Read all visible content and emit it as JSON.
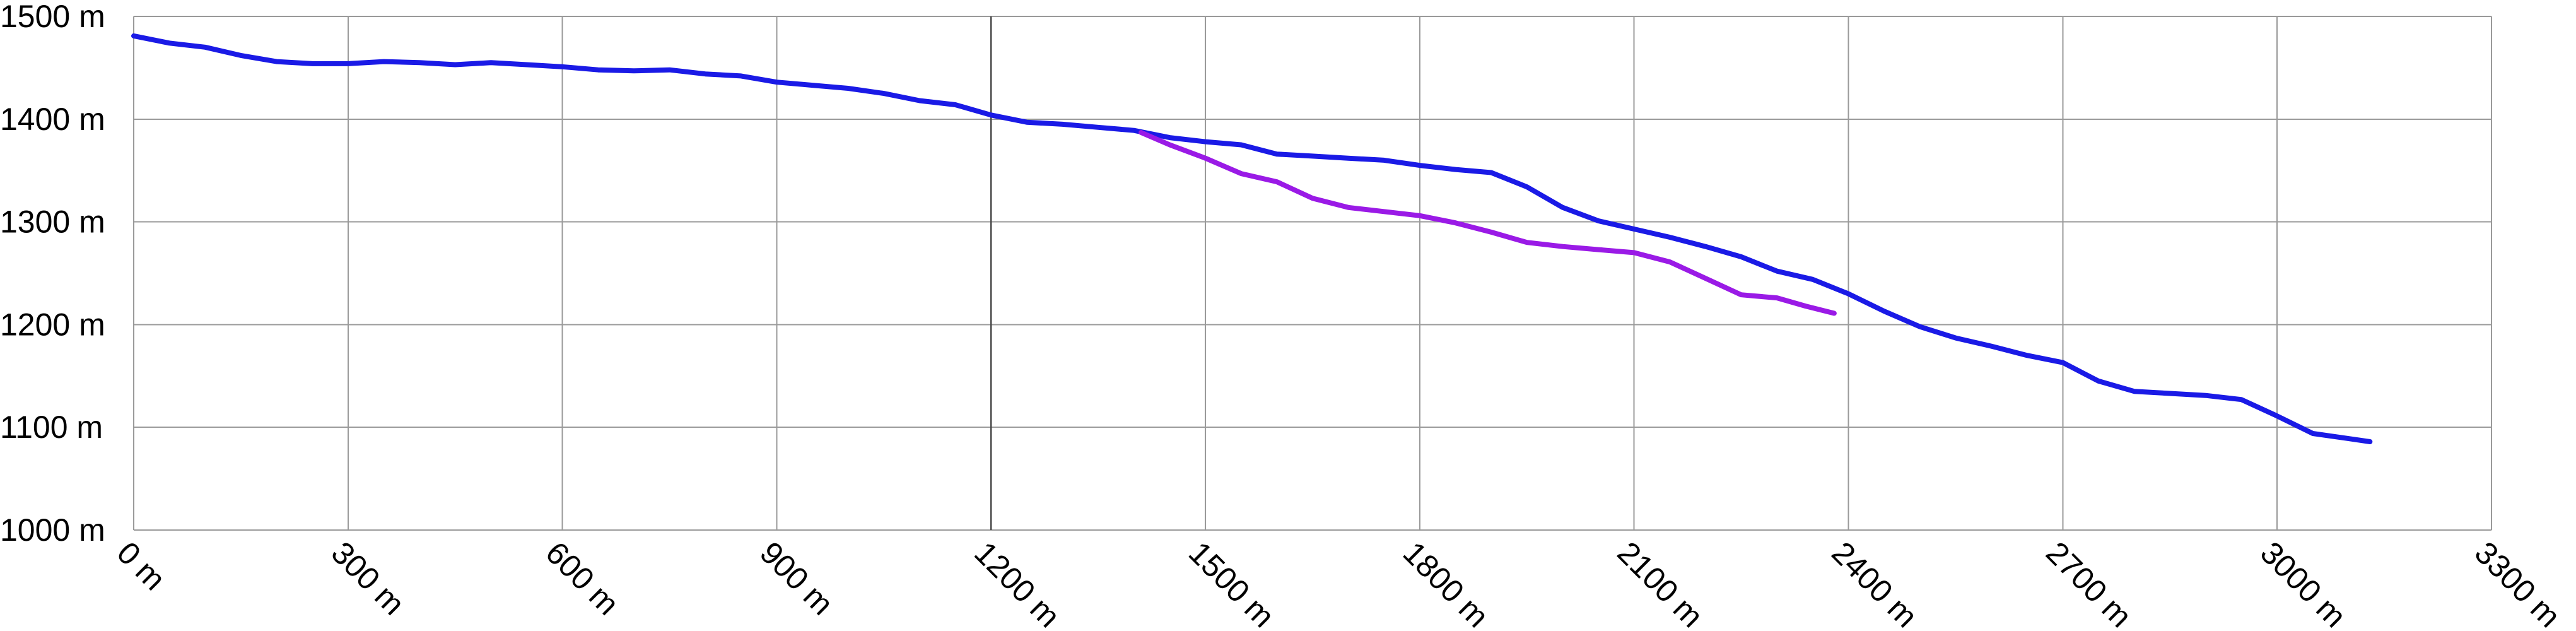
{
  "chart_data": {
    "type": "line",
    "title": "",
    "xlabel": "",
    "ylabel": "",
    "xlim": [
      0,
      3300
    ],
    "ylim": [
      1000,
      1500
    ],
    "x_ticks": [
      0,
      300,
      600,
      900,
      1200,
      1500,
      1800,
      2100,
      2400,
      2700,
      3000,
      3300
    ],
    "y_ticks": [
      1000,
      1100,
      1200,
      1300,
      1400,
      1500
    ],
    "x_tick_labels": [
      "0 m",
      "300 m",
      "600 m",
      "900 m",
      "1200 m",
      "1500 m",
      "1800 m",
      "2100 m",
      "2400 m",
      "2700 m",
      "3000 m",
      "3300 m"
    ],
    "y_tick_labels": [
      "1000 m",
      "1100 m",
      "1200 m",
      "1300 m",
      "1400 m",
      "1500 m"
    ],
    "major_x_line": 1200,
    "grid": true,
    "legend": "none",
    "series": [
      {
        "color": "#1a1ae6",
        "points": [
          [
            0,
            1481
          ],
          [
            50,
            1474
          ],
          [
            100,
            1470
          ],
          [
            150,
            1462
          ],
          [
            200,
            1456
          ],
          [
            250,
            1454
          ],
          [
            300,
            1454
          ],
          [
            350,
            1456
          ],
          [
            400,
            1455
          ],
          [
            450,
            1453
          ],
          [
            500,
            1455
          ],
          [
            550,
            1453
          ],
          [
            600,
            1451
          ],
          [
            650,
            1448
          ],
          [
            700,
            1447
          ],
          [
            750,
            1448
          ],
          [
            800,
            1444
          ],
          [
            850,
            1442
          ],
          [
            900,
            1436
          ],
          [
            950,
            1433
          ],
          [
            1000,
            1430
          ],
          [
            1050,
            1425
          ],
          [
            1100,
            1418
          ],
          [
            1150,
            1414
          ],
          [
            1200,
            1404
          ],
          [
            1250,
            1397
          ],
          [
            1300,
            1395
          ],
          [
            1350,
            1392
          ],
          [
            1400,
            1389
          ],
          [
            1450,
            1382
          ],
          [
            1500,
            1378
          ],
          [
            1550,
            1375
          ],
          [
            1600,
            1366
          ],
          [
            1650,
            1364
          ],
          [
            1700,
            1362
          ],
          [
            1750,
            1360
          ],
          [
            1800,
            1355
          ],
          [
            1850,
            1351
          ],
          [
            1900,
            1348
          ],
          [
            1950,
            1334
          ],
          [
            2000,
            1314
          ],
          [
            2050,
            1301
          ],
          [
            2100,
            1293
          ],
          [
            2150,
            1285
          ],
          [
            2200,
            1276
          ],
          [
            2250,
            1266
          ],
          [
            2300,
            1252
          ],
          [
            2350,
            1244
          ],
          [
            2400,
            1230
          ],
          [
            2450,
            1213
          ],
          [
            2500,
            1198
          ],
          [
            2550,
            1187
          ],
          [
            2600,
            1179
          ],
          [
            2650,
            1170
          ],
          [
            2700,
            1163
          ],
          [
            2750,
            1145
          ],
          [
            2800,
            1135
          ],
          [
            2850,
            1133
          ],
          [
            2900,
            1131
          ],
          [
            2950,
            1127
          ],
          [
            3000,
            1111
          ],
          [
            3050,
            1094
          ],
          [
            3100,
            1089
          ],
          [
            3130,
            1086
          ]
        ]
      },
      {
        "color": "#9a1ae6",
        "points": [
          [
            1410,
            1387
          ],
          [
            1450,
            1375
          ],
          [
            1500,
            1362
          ],
          [
            1550,
            1347
          ],
          [
            1600,
            1339
          ],
          [
            1650,
            1323
          ],
          [
            1700,
            1314
          ],
          [
            1750,
            1310
          ],
          [
            1800,
            1306
          ],
          [
            1850,
            1299
          ],
          [
            1900,
            1290
          ],
          [
            1950,
            1280
          ],
          [
            2000,
            1276
          ],
          [
            2050,
            1273
          ],
          [
            2100,
            1270
          ],
          [
            2150,
            1261
          ],
          [
            2200,
            1245
          ],
          [
            2250,
            1229
          ],
          [
            2300,
            1226
          ],
          [
            2340,
            1218
          ],
          [
            2380,
            1211
          ]
        ]
      }
    ]
  }
}
